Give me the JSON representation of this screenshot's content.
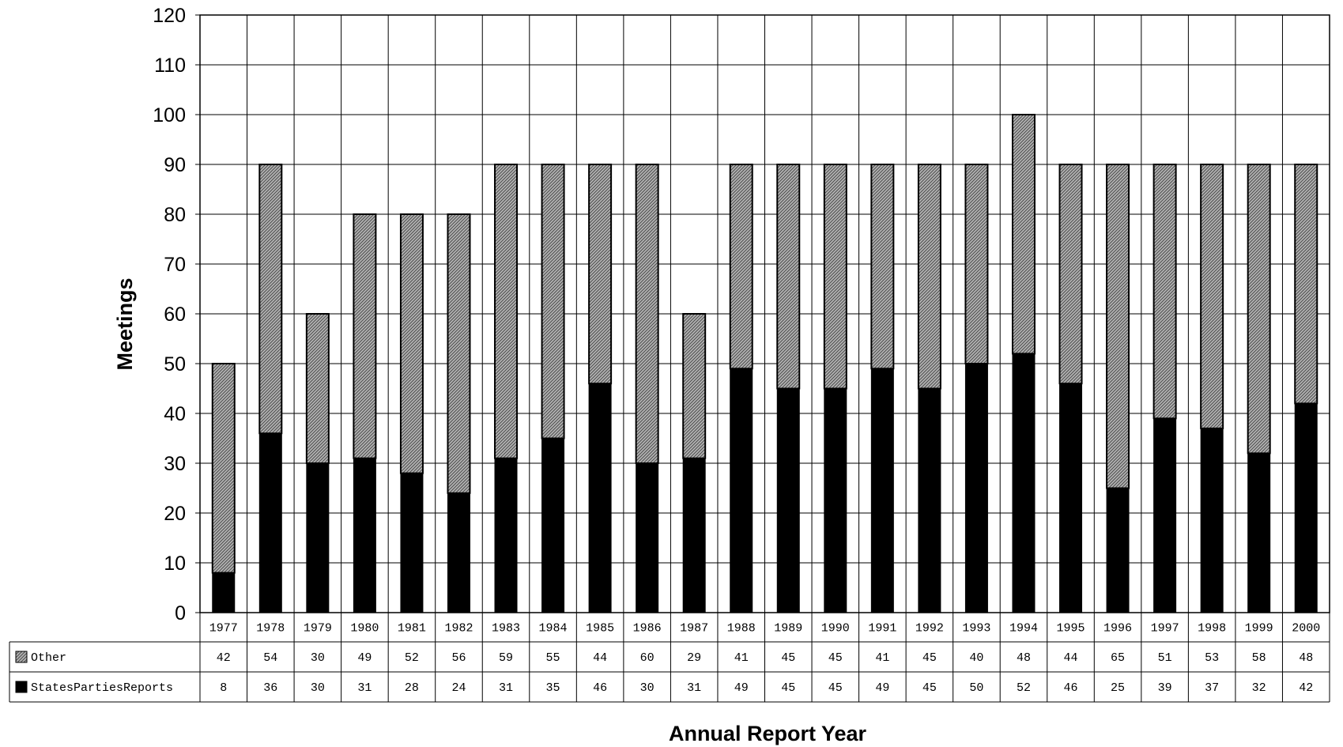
{
  "chart_data": {
    "type": "bar",
    "stacked": true,
    "title": "",
    "xlabel": "Annual Report Year",
    "ylabel": "Meetings",
    "ylim": [
      0,
      120
    ],
    "yticks": [
      0,
      10,
      20,
      30,
      40,
      50,
      60,
      70,
      80,
      90,
      100,
      110,
      120
    ],
    "grid": true,
    "legend": "data-table-left",
    "categories": [
      "1977",
      "1978",
      "1979",
      "1980",
      "1981",
      "1982",
      "1983",
      "1984",
      "1985",
      "1986",
      "1987",
      "1988",
      "1989",
      "1990",
      "1991",
      "1992",
      "1993",
      "1994",
      "1995",
      "1996",
      "1997",
      "1998",
      "1999",
      "2000"
    ],
    "series": [
      {
        "name": "StatesPartiesReports",
        "color": "#000000",
        "values": [
          8,
          36,
          30,
          31,
          28,
          24,
          31,
          35,
          46,
          30,
          31,
          49,
          45,
          45,
          49,
          45,
          50,
          52,
          46,
          25,
          39,
          37,
          32,
          42
        ]
      },
      {
        "name": "Other",
        "color": "#9a9a9a",
        "pattern": "diagonal-hatch",
        "values": [
          42,
          54,
          30,
          49,
          52,
          56,
          59,
          55,
          44,
          60,
          29,
          41,
          45,
          45,
          41,
          45,
          40,
          48,
          44,
          65,
          51,
          53,
          58,
          48
        ]
      }
    ]
  }
}
